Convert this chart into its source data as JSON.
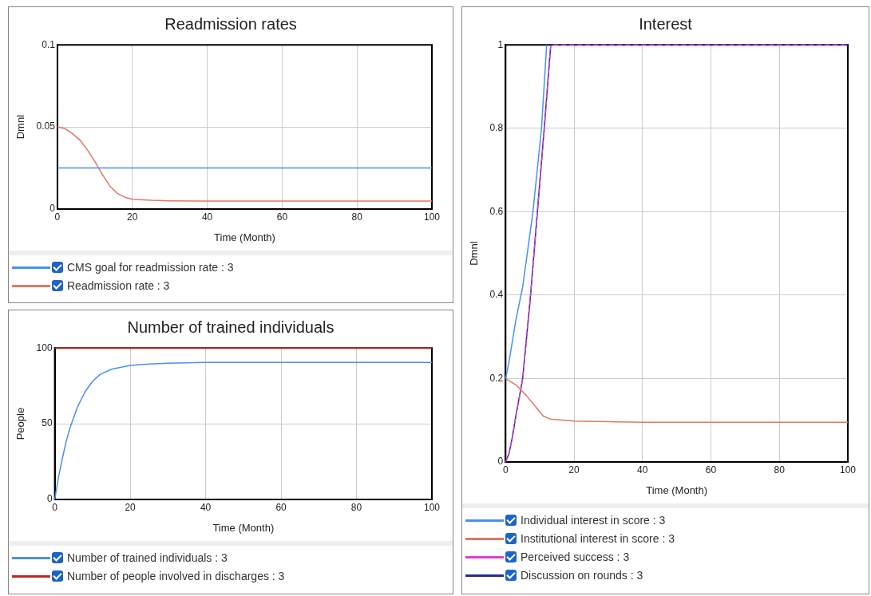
{
  "chart_data": [
    {
      "type": "line",
      "title": "Readmission rates",
      "xlabel": "Time (Month)",
      "ylabel": "Dmnl",
      "xlim": [
        0,
        100
      ],
      "xticks": [
        0,
        20,
        40,
        60,
        80,
        100
      ],
      "ylim": [
        0,
        0.1
      ],
      "yticks": [
        0,
        0.05,
        0.1
      ],
      "grid": true,
      "legend": "bottom",
      "marker": "none",
      "series": [
        {
          "name": "CMS goal for readmission rate : 3",
          "color": "#4a90f0",
          "x": [
            0,
            100
          ],
          "values": [
            0.025,
            0.025
          ]
        },
        {
          "name": "Readmission rate : 3",
          "color": "#e07a5f",
          "x": [
            0,
            2,
            4,
            6,
            8,
            10,
            12,
            14,
            16,
            18,
            20,
            25,
            30,
            40,
            60,
            100
          ],
          "values": [
            0.05,
            0.049,
            0.046,
            0.042,
            0.036,
            0.029,
            0.021,
            0.014,
            0.0095,
            0.0072,
            0.006,
            0.0053,
            0.005,
            0.0048,
            0.0048,
            0.0048
          ]
        }
      ]
    },
    {
      "type": "line",
      "title": "Number of trained individuals",
      "xlabel": "Time (Month)",
      "ylabel": "People",
      "xlim": [
        0,
        100
      ],
      "xticks": [
        0,
        20,
        40,
        60,
        80,
        100
      ],
      "ylim": [
        0,
        100
      ],
      "yticks": [
        0,
        50,
        100
      ],
      "grid": true,
      "legend": "bottom",
      "marker": "none",
      "series": [
        {
          "name": "Number of trained individuals : 3",
          "color": "#4a90f0",
          "x": [
            0,
            1,
            2,
            3,
            4,
            6,
            8,
            10,
            12,
            15,
            20,
            25,
            30,
            40,
            60,
            100
          ],
          "values": [
            0,
            15,
            27,
            38,
            47,
            61,
            71,
            78,
            82.5,
            86,
            88.5,
            89.5,
            90,
            90.5,
            90.5,
            90.5
          ]
        },
        {
          "name": "Number of people involved in discharges : 3",
          "color": "#c0281e",
          "x": [
            0,
            100
          ],
          "values": [
            100,
            100
          ]
        }
      ]
    },
    {
      "type": "line",
      "title": "Interest",
      "xlabel": "Time (Month)",
      "ylabel": "Dmnl",
      "xlim": [
        0,
        100
      ],
      "xticks": [
        0,
        20,
        40,
        60,
        80,
        100
      ],
      "ylim": [
        0,
        1
      ],
      "yticks": [
        0,
        0.2,
        0.4,
        0.6,
        0.8,
        1
      ],
      "grid": true,
      "legend": "bottom",
      "marker": "none",
      "series": [
        {
          "name": "Individual interest in score : 3",
          "color": "#4a90f0",
          "x": [
            0,
            1,
            2,
            3,
            5,
            8,
            10.5,
            12
          ],
          "values": [
            0.2,
            0.24,
            0.29,
            0.34,
            0.42,
            0.6,
            0.8,
            1
          ]
        },
        {
          "name": "Institutional interest in score : 3",
          "color": "#e07a5f",
          "x": [
            0,
            3,
            6,
            9,
            11,
            13,
            20,
            40,
            100
          ],
          "values": [
            0.2,
            0.185,
            0.16,
            0.13,
            0.11,
            0.103,
            0.098,
            0.095,
            0.095
          ]
        },
        {
          "name": "Perceived success : 3",
          "color": "#e040d0",
          "line_style": "dashed",
          "x": [
            0,
            1,
            2,
            3,
            5,
            7.3,
            9.3,
            11.3,
            13.2,
            100
          ],
          "values": [
            0,
            0.02,
            0.06,
            0.11,
            0.2,
            0.4,
            0.6,
            0.8,
            1,
            1
          ]
        },
        {
          "name": "Discussion on rounds : 3",
          "color": "#2a2a9a",
          "x": [
            0,
            1,
            2,
            3,
            5,
            7.3,
            9.3,
            11.3,
            13.2,
            100
          ],
          "values": [
            0,
            0.02,
            0.06,
            0.11,
            0.2,
            0.4,
            0.6,
            0.8,
            1,
            1
          ]
        }
      ]
    }
  ]
}
